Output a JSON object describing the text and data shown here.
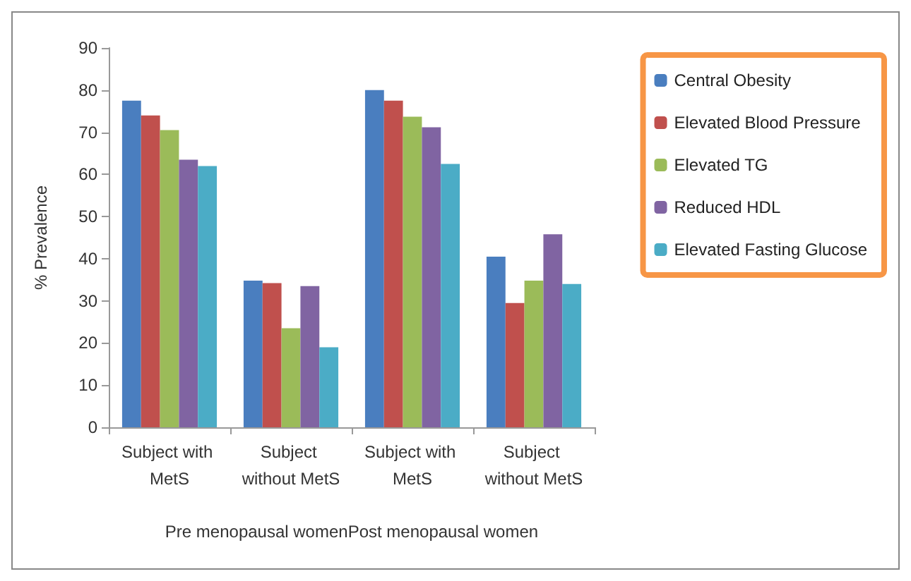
{
  "chart_data": {
    "type": "bar",
    "ylabel": "% Prevalence",
    "xlabel": "Pre menopausal womenPost menopausal women",
    "categories": [
      "Subject with MetS",
      "Subject without MetS",
      "Subject with MetS",
      "Subject without MetS"
    ],
    "series": [
      {
        "name": "Central Obesity",
        "color": "#4a7ebf",
        "values": [
          77.5,
          34.8,
          80,
          40.5
        ]
      },
      {
        "name": "Elevated Blood Pressure",
        "color": "#c0504d",
        "values": [
          74,
          34.2,
          77.5,
          29.5
        ]
      },
      {
        "name": "Elevated TG",
        "color": "#9bbb59",
        "values": [
          70.5,
          23.5,
          73.7,
          34.8
        ]
      },
      {
        "name": "Reduced HDL",
        "color": "#8064a2",
        "values": [
          63.5,
          33.5,
          71.2,
          45.8
        ]
      },
      {
        "name": "Elevated Fasting Glucose",
        "color": "#4bacc6",
        "values": [
          62,
          19,
          62.5,
          34
        ]
      }
    ],
    "ylim": [
      0,
      90
    ],
    "yticks": [
      0,
      10,
      20,
      30,
      40,
      50,
      60,
      70,
      80,
      90
    ],
    "grid": false,
    "legend": "right"
  }
}
